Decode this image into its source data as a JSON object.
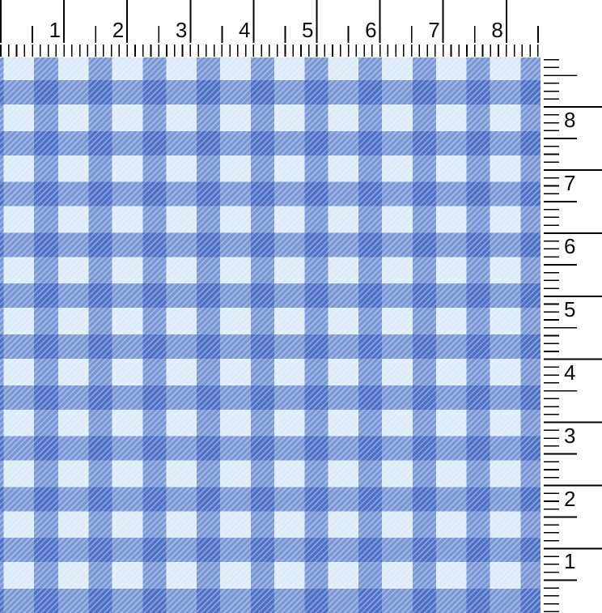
{
  "scene": {
    "description": "Blue gingham check fabric swatch with inch rulers along the top and right edges"
  },
  "top_ruler": {
    "side": "top",
    "labels": [
      "1",
      "2",
      "3",
      "4",
      "5",
      "6",
      "7",
      "8"
    ],
    "minor_divisions_per_inch": 8
  },
  "right_ruler": {
    "side": "right",
    "labels": [
      "8",
      "7",
      "6",
      "5",
      "4",
      "3",
      "2",
      "1"
    ],
    "minor_divisions_per_inch": 8
  },
  "fabric": {
    "pattern": "gingham check",
    "colors": {
      "base_light": "#dcebf8",
      "check_blue": "#4f70c7",
      "halftone_blue": "#7d95d8",
      "hatch_stripe": "rgba(40,80,185,0.54)"
    }
  }
}
